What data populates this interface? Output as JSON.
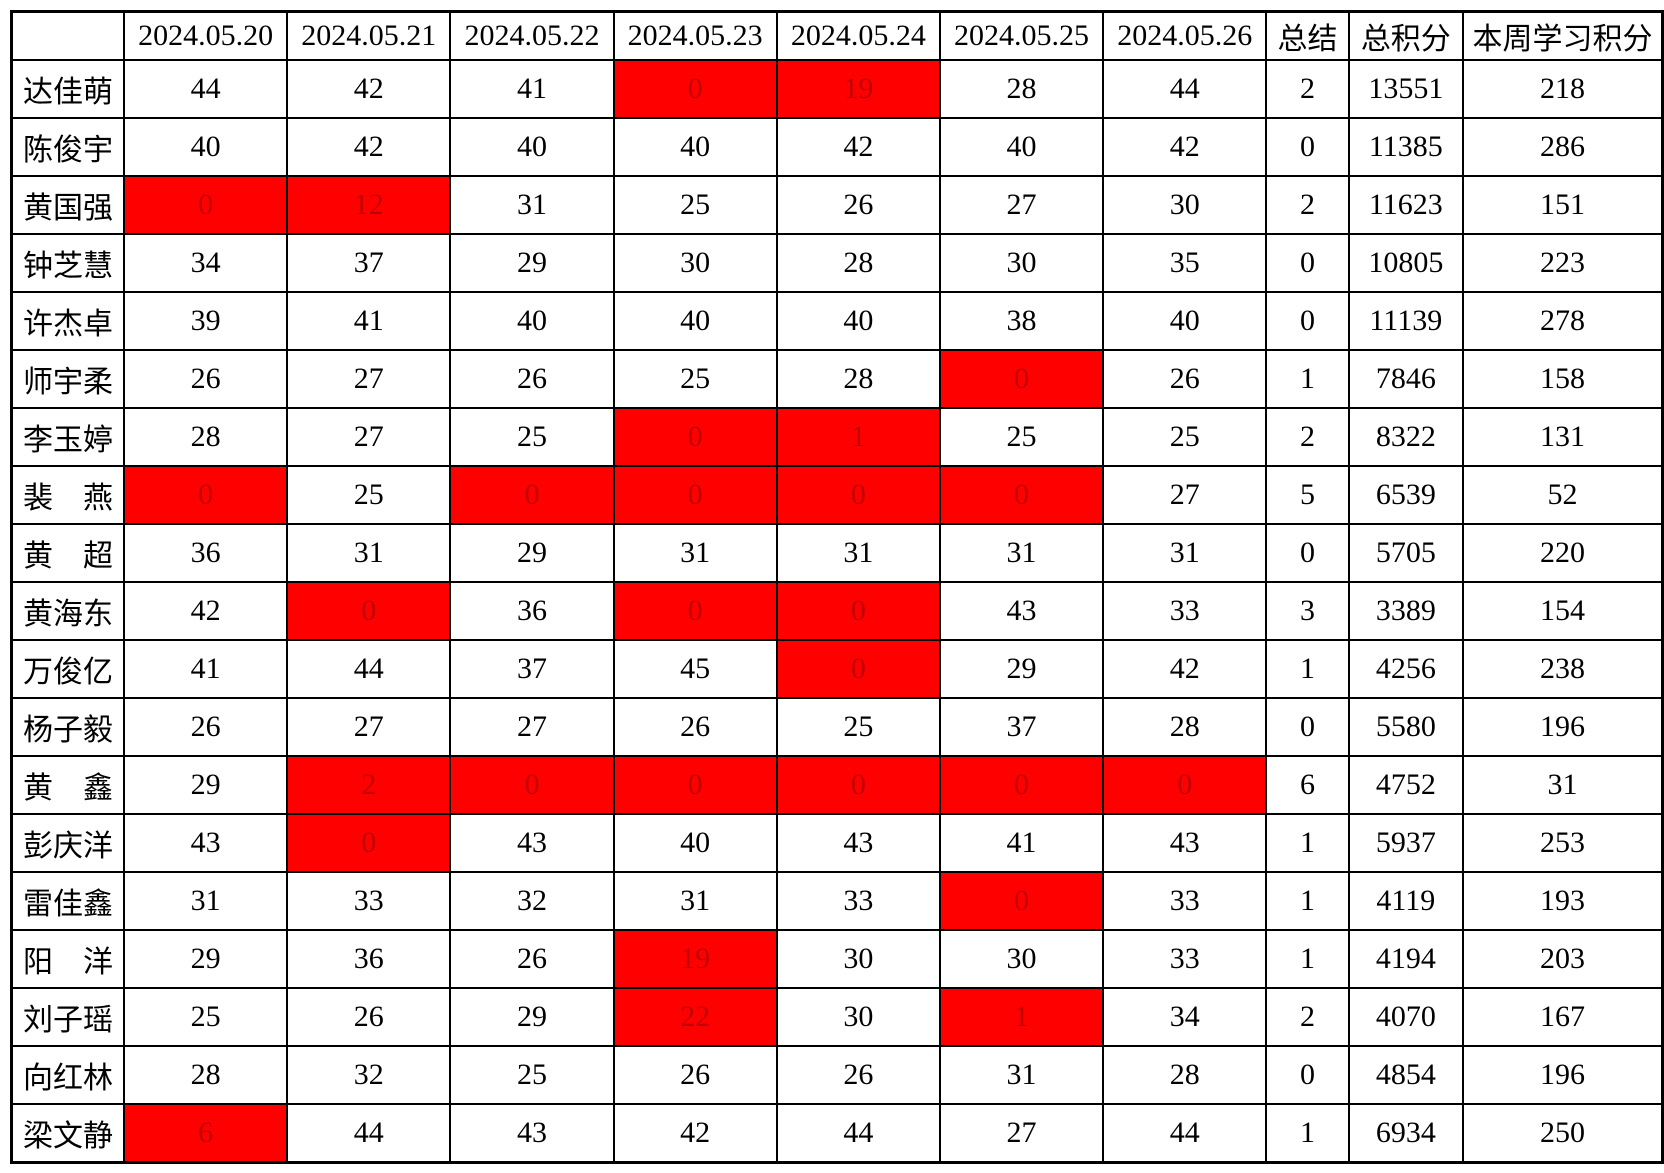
{
  "table": {
    "header": {
      "corner": "",
      "dates": [
        "2024.05.20",
        "2024.05.21",
        "2024.05.22",
        "2024.05.23",
        "2024.05.24",
        "2024.05.25",
        "2024.05.26"
      ],
      "summary_label": "总结",
      "total_label": "总积分",
      "week_label": "本周学习积分"
    },
    "colors": {
      "red_fill": "#ff0000",
      "red_fill_text": "#c00000",
      "red_text": "#ff0000",
      "grid": "#000000"
    },
    "rows": [
      {
        "name": "达佳萌",
        "daily": [
          44,
          42,
          41,
          0,
          19,
          28,
          44
        ],
        "red_days": [
          3,
          4
        ],
        "summary": 2,
        "total": 13551,
        "week": 218
      },
      {
        "name": "陈俊宇",
        "daily": [
          40,
          42,
          40,
          40,
          42,
          40,
          42
        ],
        "red_days": [],
        "summary": 0,
        "total": 11385,
        "week": 286
      },
      {
        "name": "黄国强",
        "daily": [
          0,
          12,
          31,
          25,
          26,
          27,
          30
        ],
        "red_days": [
          0,
          1
        ],
        "summary": 2,
        "total": 11623,
        "week": 151
      },
      {
        "name": "钟芝慧",
        "daily": [
          34,
          37,
          29,
          30,
          28,
          30,
          35
        ],
        "red_days": [],
        "summary": 0,
        "total": 10805,
        "week": 223
      },
      {
        "name": "许杰卓",
        "daily": [
          39,
          41,
          40,
          40,
          40,
          38,
          40
        ],
        "red_days": [],
        "summary": 0,
        "total": 11139,
        "week": 278
      },
      {
        "name": "师宇柔",
        "daily": [
          26,
          27,
          26,
          25,
          28,
          0,
          26
        ],
        "red_days": [
          5
        ],
        "summary": 1,
        "total": 7846,
        "week": 158
      },
      {
        "name": "李玉婷",
        "daily": [
          28,
          27,
          25,
          0,
          1,
          25,
          25
        ],
        "red_days": [
          3,
          4
        ],
        "summary": 2,
        "total": 8322,
        "week": 131
      },
      {
        "name": "裴燕",
        "daily": [
          0,
          25,
          0,
          0,
          0,
          0,
          27
        ],
        "red_days": [
          0,
          2,
          3,
          4,
          5
        ],
        "summary": 5,
        "total": 6539,
        "week": 52
      },
      {
        "name": "黄超",
        "daily": [
          36,
          31,
          29,
          31,
          31,
          31,
          31
        ],
        "red_days": [],
        "summary": 0,
        "total": 5705,
        "week": 220
      },
      {
        "name": "黄海东",
        "daily": [
          42,
          0,
          36,
          0,
          0,
          43,
          33
        ],
        "red_days": [
          1,
          3,
          4
        ],
        "summary": 3,
        "total": 3389,
        "week": 154
      },
      {
        "name": "万俊亿",
        "daily": [
          41,
          44,
          37,
          45,
          0,
          29,
          42
        ],
        "red_days": [
          4
        ],
        "summary": 1,
        "total": 4256,
        "week": 238
      },
      {
        "name": "杨子毅",
        "daily": [
          26,
          27,
          27,
          26,
          25,
          37,
          28
        ],
        "red_days": [],
        "summary": 0,
        "total": 5580,
        "week": 196
      },
      {
        "name": "黄鑫",
        "daily": [
          29,
          2,
          0,
          0,
          0,
          0,
          0
        ],
        "red_days": [
          1,
          2,
          3,
          4,
          5,
          6
        ],
        "summary": 6,
        "total": 4752,
        "week": 31
      },
      {
        "name": "彭庆洋",
        "daily": [
          43,
          0,
          43,
          40,
          43,
          41,
          43
        ],
        "red_days": [
          1
        ],
        "summary": 1,
        "total": 5937,
        "week": 253
      },
      {
        "name": "雷佳鑫",
        "daily": [
          31,
          33,
          32,
          31,
          33,
          0,
          33
        ],
        "red_days": [
          5
        ],
        "summary": 1,
        "total": 4119,
        "week": 193
      },
      {
        "name": "阳洋",
        "daily": [
          29,
          36,
          26,
          19,
          30,
          30,
          33
        ],
        "red_days": [
          3
        ],
        "summary": 1,
        "total": 4194,
        "week": 203
      },
      {
        "name": "刘子瑶",
        "daily": [
          25,
          26,
          29,
          22,
          30,
          1,
          34
        ],
        "red_days": [
          3,
          5
        ],
        "summary": 2,
        "total": 4070,
        "week": 167
      },
      {
        "name": "向红林",
        "daily": [
          28,
          32,
          25,
          26,
          26,
          31,
          28
        ],
        "red_days": [],
        "summary": 0,
        "total": 4854,
        "week": 196
      },
      {
        "name": "梁文静",
        "daily": [
          6,
          44,
          43,
          42,
          44,
          27,
          44
        ],
        "red_days": [
          0
        ],
        "summary": 1,
        "total": 6934,
        "week": 250
      }
    ]
  }
}
